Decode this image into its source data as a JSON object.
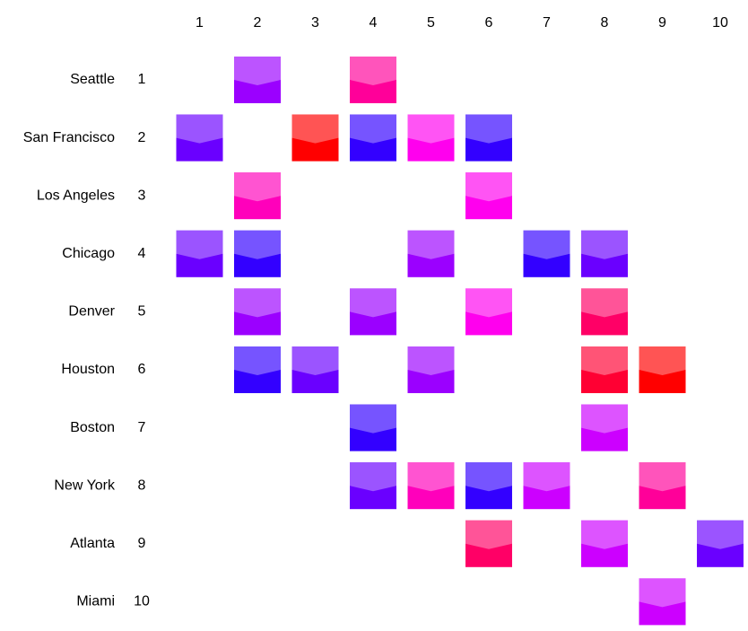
{
  "chart_data": {
    "type": "heatmap",
    "row_labels": [
      "Seattle",
      "San Francisco",
      "Los Angeles",
      "Chicago",
      "Denver",
      "Houston",
      "Boston",
      "New York",
      "Atlanta",
      "Miami"
    ],
    "row_indices": [
      "1",
      "2",
      "3",
      "4",
      "5",
      "6",
      "7",
      "8",
      "9",
      "10"
    ],
    "col_labels": [
      "1",
      "2",
      "3",
      "4",
      "5",
      "6",
      "7",
      "8",
      "9",
      "10"
    ],
    "cells": [
      {
        "row": 1,
        "col": 2,
        "color": "#9b00ff"
      },
      {
        "row": 1,
        "col": 4,
        "color": "#ff0099"
      },
      {
        "row": 2,
        "col": 1,
        "color": "#6a00ff"
      },
      {
        "row": 2,
        "col": 3,
        "color": "#ff0000"
      },
      {
        "row": 2,
        "col": 4,
        "color": "#3300ff"
      },
      {
        "row": 2,
        "col": 5,
        "color": "#ff00ee"
      },
      {
        "row": 2,
        "col": 6,
        "color": "#3300ff"
      },
      {
        "row": 3,
        "col": 2,
        "color": "#ff00bb"
      },
      {
        "row": 3,
        "col": 6,
        "color": "#ff00ee"
      },
      {
        "row": 4,
        "col": 1,
        "color": "#6a00ff"
      },
      {
        "row": 4,
        "col": 2,
        "color": "#3300ff"
      },
      {
        "row": 4,
        "col": 5,
        "color": "#9b00ff"
      },
      {
        "row": 4,
        "col": 7,
        "color": "#3300ff"
      },
      {
        "row": 4,
        "col": 8,
        "color": "#6a00ff"
      },
      {
        "row": 5,
        "col": 2,
        "color": "#9b00ff"
      },
      {
        "row": 5,
        "col": 4,
        "color": "#9b00ff"
      },
      {
        "row": 5,
        "col": 6,
        "color": "#ff00ee"
      },
      {
        "row": 5,
        "col": 8,
        "color": "#ff0066"
      },
      {
        "row": 6,
        "col": 2,
        "color": "#3300ff"
      },
      {
        "row": 6,
        "col": 3,
        "color": "#6a00ff"
      },
      {
        "row": 6,
        "col": 5,
        "color": "#9b00ff"
      },
      {
        "row": 6,
        "col": 8,
        "color": "#ff0033"
      },
      {
        "row": 6,
        "col": 9,
        "color": "#ff0000"
      },
      {
        "row": 7,
        "col": 4,
        "color": "#3300ff"
      },
      {
        "row": 7,
        "col": 8,
        "color": "#cc00ff"
      },
      {
        "row": 8,
        "col": 4,
        "color": "#6a00ff"
      },
      {
        "row": 8,
        "col": 5,
        "color": "#ff00bb"
      },
      {
        "row": 8,
        "col": 6,
        "color": "#3300ff"
      },
      {
        "row": 8,
        "col": 7,
        "color": "#cc00ff"
      },
      {
        "row": 8,
        "col": 9,
        "color": "#ff0099"
      },
      {
        "row": 9,
        "col": 6,
        "color": "#ff0066"
      },
      {
        "row": 9,
        "col": 8,
        "color": "#cc00ff"
      },
      {
        "row": 9,
        "col": 10,
        "color": "#6a00ff"
      },
      {
        "row": 10,
        "col": 9,
        "color": "#cc00ff"
      }
    ]
  }
}
